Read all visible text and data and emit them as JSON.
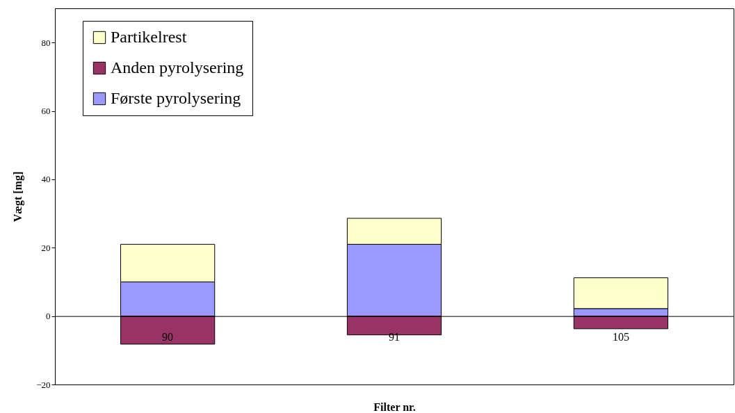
{
  "chart_data": {
    "type": "bar",
    "stacked": true,
    "xlabel": "Filter nr.",
    "ylabel": "Vægt [mg]",
    "categories": [
      "90",
      "91",
      "105"
    ],
    "series": [
      {
        "name": "Første pyrolysering",
        "color": "#9999ff",
        "values": [
          10,
          21,
          2.2
        ]
      },
      {
        "name": "Anden pyrolysering",
        "color": "#993366",
        "values": [
          -8.2,
          -5.5,
          -3.7
        ]
      },
      {
        "name": "Partikelrest",
        "color": "#ffffcc",
        "values": [
          11,
          7.6,
          9
        ]
      }
    ],
    "ylim": [
      -20,
      90
    ],
    "yticks": [
      -20,
      0,
      20,
      40,
      60,
      80
    ],
    "grid": false,
    "legend": "top left"
  }
}
